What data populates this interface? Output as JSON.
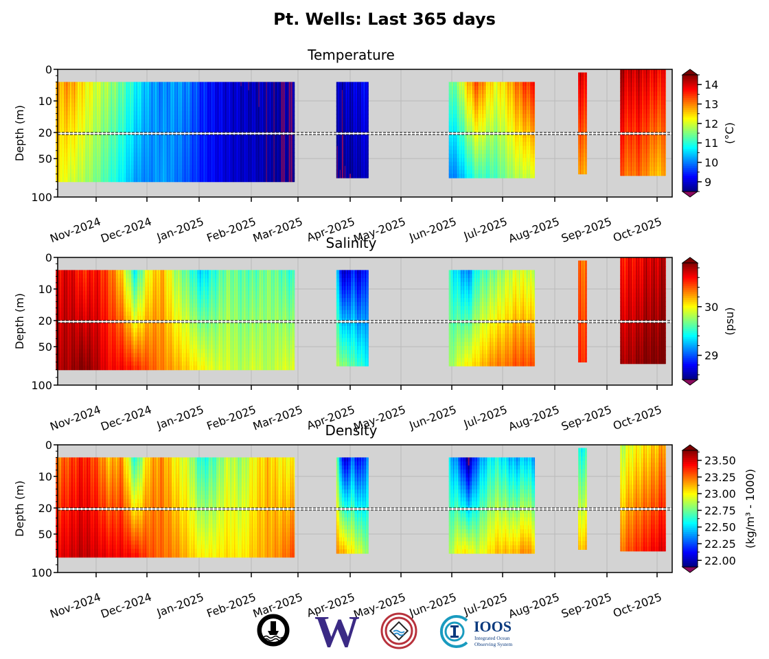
{
  "title": "Pt. Wells: Last 365 days",
  "colors": {
    "axes_bg": "#d3d3d3",
    "no_data": "#d3d3d3",
    "uw_purple": "#3b2a85",
    "ioos_teal": "#1a9bbf",
    "ioos_navy": "#0b3a7e",
    "nw_red": "#b8323c"
  },
  "logos": {
    "ioos_name": "IOOS",
    "ioos_sub1": "Integrated Ocean",
    "ioos_sub2": "Observing System",
    "uw_letter": "W"
  },
  "chart_data": [
    {
      "type": "heatmap",
      "title": "Temperature",
      "ylabel": "Depth (m)",
      "colorbar_label": "(°C)",
      "colorbar_ticks": [
        "9",
        "10",
        "11",
        "12",
        "13",
        "14"
      ],
      "colorbar_range": [
        8.5,
        14.5
      ],
      "colorbar_extend": "both",
      "colormap": "jet",
      "y_ticks": [
        "0",
        "10",
        "20",
        "50",
        "100"
      ],
      "x_ticks": [
        "Nov-2024",
        "Dec-2024",
        "Jan-2025",
        "Feb-2025",
        "Mar-2025",
        "Apr-2025",
        "May-2025",
        "Jun-2025",
        "Jul-2025",
        "Aug-2025",
        "Sep-2025",
        "Oct-2025"
      ],
      "ylim": [
        0,
        100
      ],
      "depth_break": 20,
      "segments": [
        {
          "start": "2024-10-08",
          "end": "2025-02-27",
          "depth": [
            4,
            80
          ],
          "surface": [
            12.6,
            12.9,
            12.4,
            12.0,
            11.7,
            11.3,
            10.8,
            10.3,
            10.0,
            10.2,
            10.0,
            9.5,
            9.2,
            9.0,
            8.9,
            8.8,
            8.8,
            8.6,
            8.7
          ],
          "bottom": [
            12.4,
            12.0,
            11.8,
            11.5,
            11.1,
            10.7,
            10.2,
            10.0,
            10.2,
            10.0,
            9.7,
            9.4,
            9.2,
            9.0,
            8.9,
            8.9,
            8.7,
            8.6,
            8.5
          ]
        },
        {
          "start": "2025-03-24",
          "end": "2025-04-12",
          "depth": [
            4,
            75
          ],
          "surface": [
            8.8,
            8.9,
            9.0,
            9.1,
            9.3
          ],
          "bottom": [
            8.5,
            8.6,
            8.7,
            8.8,
            8.9
          ]
        },
        {
          "start": "2025-05-30",
          "end": "2025-07-20",
          "depth": [
            4,
            75
          ],
          "surface": [
            11.2,
            11.6,
            12.6,
            13.3,
            12.6,
            12.2,
            12.5,
            13.0,
            13.4,
            13.6
          ],
          "bottom": [
            9.9,
            10.2,
            10.7,
            11.2,
            11.1,
            11.2,
            11.5,
            11.8,
            11.9,
            12.0
          ]
        },
        {
          "start": "2025-08-15",
          "end": "2025-08-20",
          "depth": [
            1,
            70
          ],
          "surface": [
            13.9
          ],
          "bottom": [
            12.8
          ]
        },
        {
          "start": "2025-09-09",
          "end": "2025-10-06",
          "depth": [
            0,
            72
          ],
          "surface": [
            14.3,
            14.0,
            14.1,
            13.9,
            13.8,
            13.7
          ],
          "bottom": [
            13.3,
            13.0,
            13.2,
            12.9,
            12.6,
            12.8
          ]
        }
      ]
    },
    {
      "type": "heatmap",
      "title": "Salinity",
      "ylabel": "Depth (m)",
      "colorbar_label": "(psu)",
      "colorbar_ticks": [
        "29",
        "30"
      ],
      "colorbar_range": [
        28.5,
        30.9
      ],
      "colorbar_extend": "both",
      "colormap": "jet",
      "y_ticks": [
        "0",
        "10",
        "20",
        "50",
        "100"
      ],
      "x_ticks": [
        "Nov-2024",
        "Dec-2024",
        "Jan-2025",
        "Feb-2025",
        "Mar-2025",
        "Apr-2025",
        "May-2025",
        "Jun-2025",
        "Jul-2025",
        "Aug-2025",
        "Sep-2025",
        "Oct-2025"
      ],
      "ylim": [
        0,
        100
      ],
      "depth_break": 20,
      "segments": [
        {
          "start": "2024-10-08",
          "end": "2025-02-27",
          "depth": [
            4,
            80
          ],
          "surface": [
            30.6,
            30.7,
            30.5,
            30.6,
            30.4,
            30.1,
            29.4,
            30.0,
            30.2,
            29.8,
            29.6,
            29.3,
            29.5,
            29.7,
            29.6,
            29.6,
            29.7,
            29.6,
            29.5
          ],
          "bottom": [
            30.8,
            30.8,
            30.9,
            30.8,
            30.6,
            30.6,
            30.5,
            30.4,
            30.3,
            30.2,
            30.1,
            30.0,
            29.9,
            29.9,
            29.8,
            29.9,
            29.8,
            29.9,
            29.9
          ]
        },
        {
          "start": "2025-03-24",
          "end": "2025-04-12",
          "depth": [
            4,
            75
          ],
          "surface": [
            29.3,
            28.6,
            28.9,
            28.7,
            29.0
          ],
          "bottom": [
            29.8,
            29.7,
            29.6,
            29.5,
            29.4
          ]
        },
        {
          "start": "2025-05-30",
          "end": "2025-07-20",
          "depth": [
            4,
            75
          ],
          "surface": [
            29.5,
            29.3,
            29.1,
            29.5,
            29.6,
            29.7,
            29.8,
            29.9,
            29.9,
            29.8
          ],
          "bottom": [
            29.7,
            29.9,
            30.0,
            30.1,
            30.2,
            30.3,
            30.3,
            30.4,
            30.4,
            30.4
          ]
        },
        {
          "start": "2025-08-15",
          "end": "2025-08-20",
          "depth": [
            1,
            70
          ],
          "surface": [
            30.35
          ],
          "bottom": [
            30.5
          ]
        },
        {
          "start": "2025-09-09",
          "end": "2025-10-06",
          "depth": [
            0,
            72
          ],
          "surface": [
            30.5,
            30.6,
            30.6,
            30.7,
            30.7,
            30.8
          ],
          "bottom": [
            30.8,
            30.8,
            30.85,
            30.9,
            30.9,
            30.95
          ]
        }
      ]
    },
    {
      "type": "heatmap",
      "title": "Density",
      "ylabel": "Depth (m)",
      "colorbar_label": "(kg/m³ - 1000)",
      "colorbar_ticks": [
        "22.00",
        "22.25",
        "22.50",
        "22.75",
        "23.00",
        "23.25",
        "23.50"
      ],
      "colorbar_range": [
        21.9,
        23.65
      ],
      "colorbar_extend": "both",
      "colormap": "jet",
      "y_ticks": [
        "0",
        "10",
        "20",
        "50",
        "100"
      ],
      "x_ticks": [
        "Nov-2024",
        "Dec-2024",
        "Jan-2025",
        "Feb-2025",
        "Mar-2025",
        "Apr-2025",
        "May-2025",
        "Jun-2025",
        "Jul-2025",
        "Aug-2025",
        "Sep-2025",
        "Oct-2025"
      ],
      "ylim": [
        0,
        100
      ],
      "depth_break": 20,
      "segments": [
        {
          "start": "2024-10-08",
          "end": "2025-02-27",
          "depth": [
            4,
            80
          ],
          "surface": [
            23.2,
            23.3,
            23.4,
            23.3,
            23.1,
            23.2,
            22.6,
            23.1,
            23.2,
            23.0,
            22.9,
            22.6,
            22.7,
            22.9,
            22.8,
            23.0,
            23.1,
            23.0,
            23.0
          ],
          "bottom": [
            23.45,
            23.5,
            23.55,
            23.5,
            23.45,
            23.45,
            23.4,
            23.3,
            23.25,
            23.2,
            23.1,
            23.0,
            23.0,
            23.05,
            23.0,
            23.1,
            23.15,
            23.2,
            23.3
          ]
        },
        {
          "start": "2025-03-24",
          "end": "2025-04-12",
          "depth": [
            4,
            75
          ],
          "surface": [
            22.8,
            22.0,
            22.3,
            22.1,
            22.4
          ],
          "bottom": [
            23.2,
            23.1,
            23.0,
            22.9,
            22.8
          ]
        },
        {
          "start": "2025-05-30",
          "end": "2025-07-20",
          "depth": [
            4,
            75
          ],
          "surface": [
            22.5,
            22.3,
            21.9,
            22.3,
            22.5,
            22.6,
            22.5,
            22.4,
            22.5,
            22.4
          ],
          "bottom": [
            22.8,
            23.0,
            23.0,
            22.9,
            23.0,
            23.1,
            23.1,
            23.1,
            23.2,
            23.1
          ]
        },
        {
          "start": "2025-08-15",
          "end": "2025-08-20",
          "depth": [
            1,
            70
          ],
          "surface": [
            22.6
          ],
          "bottom": [
            23.1
          ]
        },
        {
          "start": "2025-09-09",
          "end": "2025-10-06",
          "depth": [
            0,
            72
          ],
          "surface": [
            22.85,
            22.95,
            23.0,
            23.05,
            23.1,
            23.2
          ],
          "bottom": [
            23.2,
            23.3,
            23.35,
            23.4,
            23.45,
            23.5
          ]
        }
      ]
    }
  ]
}
